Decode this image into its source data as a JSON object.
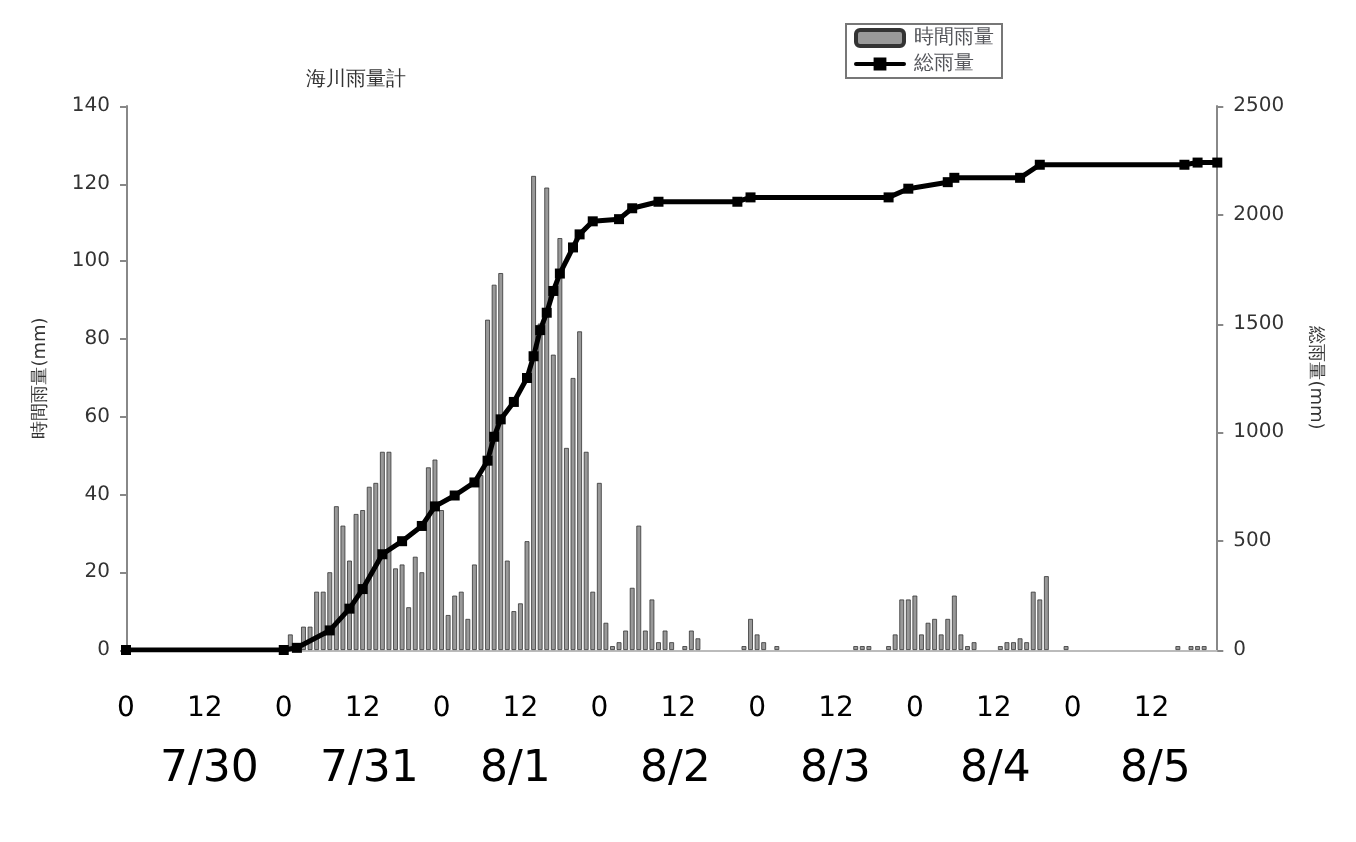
{
  "chart_data": {
    "type": "bar",
    "title": "海川雨量計",
    "ylabel": "時間雨量(mm)",
    "y2label": "総雨量(mm)",
    "xlim": [
      "--07-30T00:00",
      "--08-05T22:00"
    ],
    "xticks": [
      {
        "value": "--07-30T00:00",
        "label": "0"
      },
      {
        "value": "--07-30T12:00",
        "label": "12"
      },
      {
        "value": "--07-31T00:00",
        "label": "0"
      },
      {
        "value": "--07-31T12:00",
        "label": "12"
      },
      {
        "value": "--08-01T00:00",
        "label": "0"
      },
      {
        "value": "--08-01T12:00",
        "label": "12"
      },
      {
        "value": "--08-02T00:00",
        "label": "0"
      },
      {
        "value": "--08-02T12:00",
        "label": "12"
      },
      {
        "value": "--08-03T00:00",
        "label": "0"
      },
      {
        "value": "--08-03T12:00",
        "label": "12"
      },
      {
        "value": "--08-04T00:00",
        "label": "0"
      },
      {
        "value": "--08-04T12:00",
        "label": "12"
      },
      {
        "value": "--08-05T00:00",
        "label": "0"
      },
      {
        "value": "--08-05T12:00",
        "label": "12"
      }
    ],
    "ylim": [
      0,
      140
    ],
    "yticks": [
      0,
      20,
      40,
      60,
      80,
      100,
      120,
      140
    ],
    "y2lim": [
      0,
      2500
    ],
    "y2ticks": [
      0,
      500,
      1000,
      1500,
      2000,
      2500
    ],
    "series": [
      {
        "name": "時間雨量",
        "color": "#999999",
        "x": [
          "--07-31T01:00",
          "--07-31T03:00",
          "--07-31T04:00",
          "--07-31T05:00",
          "--07-31T06:00",
          "--07-31T07:00",
          "--07-31T08:00",
          "--07-31T09:00",
          "--07-31T10:00",
          "--07-31T11:00",
          "--07-31T12:00",
          "--07-31T13:00",
          "--07-31T14:00",
          "--07-31T15:00",
          "--07-31T16:00",
          "--07-31T17:00",
          "--07-31T18:00",
          "--07-31T19:00",
          "--07-31T20:00",
          "--07-31T21:00",
          "--07-31T22:00",
          "--07-31T23:00",
          "--08-01T00:00",
          "--08-01T01:00",
          "--08-01T02:00",
          "--08-01T03:00",
          "--08-01T04:00",
          "--08-01T05:00",
          "--08-01T06:00",
          "--08-01T07:00",
          "--08-01T08:00",
          "--08-01T09:00",
          "--08-01T10:00",
          "--08-01T11:00",
          "--08-01T12:00",
          "--08-01T13:00",
          "--08-01T14:00",
          "--08-01T15:00",
          "--08-01T16:00",
          "--08-01T17:00",
          "--08-01T18:00",
          "--08-01T19:00",
          "--08-01T20:00",
          "--08-01T21:00",
          "--08-01T22:00",
          "--08-01T23:00",
          "--08-02T00:00",
          "--08-02T01:00",
          "--08-02T02:00",
          "--08-02T03:00",
          "--08-02T04:00",
          "--08-02T05:00",
          "--08-02T06:00",
          "--08-02T07:00",
          "--08-02T08:00",
          "--08-02T09:00",
          "--08-02T10:00",
          "--08-02T11:00",
          "--08-02T13:00",
          "--08-02T14:00",
          "--08-02T15:00",
          "--08-02T22:00",
          "--08-02T23:00",
          "--08-03T00:00",
          "--08-03T01:00",
          "--08-03T03:00",
          "--08-03T15:00",
          "--08-03T16:00",
          "--08-03T17:00",
          "--08-03T20:00",
          "--08-03T21:00",
          "--08-03T22:00",
          "--08-03T23:00",
          "--08-04T00:00",
          "--08-04T01:00",
          "--08-04T02:00",
          "--08-04T03:00",
          "--08-04T04:00",
          "--08-04T05:00",
          "--08-04T06:00",
          "--08-04T07:00",
          "--08-04T08:00",
          "--08-04T09:00",
          "--08-04T13:00",
          "--08-04T14:00",
          "--08-04T15:00",
          "--08-04T16:00",
          "--08-04T17:00",
          "--08-04T18:00",
          "--08-04T19:00",
          "--08-04T20:00",
          "--08-04T23:00",
          "--08-05T16:00",
          "--08-05T18:00",
          "--08-05T19:00",
          "--08-05T20:00"
        ],
        "values": [
          4,
          6,
          6,
          15,
          15,
          20,
          37,
          32,
          23,
          35,
          36,
          42,
          43,
          51,
          51,
          21,
          22,
          11,
          24,
          20,
          47,
          49,
          36,
          9,
          14,
          15,
          8,
          22,
          45,
          85,
          94,
          97,
          23,
          10,
          12,
          28,
          122,
          84,
          119,
          76,
          106,
          52,
          70,
          82,
          51,
          15,
          43,
          7,
          1,
          2,
          5,
          16,
          32,
          5,
          13,
          2,
          5,
          2,
          1,
          5,
          3,
          1,
          8,
          4,
          2,
          1,
          1,
          1,
          1,
          1,
          4,
          13,
          13,
          14,
          4,
          7,
          8,
          4,
          8,
          14,
          4,
          1,
          2,
          1,
          2,
          2,
          3,
          2,
          15,
          13,
          19,
          1,
          1,
          1,
          1,
          1
        ]
      },
      {
        "name": "総雨量",
        "type": "line",
        "axis": "y2",
        "color": "#000000",
        "x": [
          "--07-30T00:00",
          "--07-31T00:00",
          "--07-31T02:00",
          "--07-31T07:00",
          "--07-31T10:00",
          "--07-31T12:00",
          "--07-31T15:00",
          "--07-31T18:00",
          "--07-31T21:00",
          "--07-31T23:00",
          "--08-01T02:00",
          "--08-01T05:00",
          "--08-01T07:00",
          "--08-01T08:00",
          "--08-01T09:00",
          "--08-01T11:00",
          "--08-01T13:00",
          "--08-01T14:00",
          "--08-01T15:00",
          "--08-01T16:00",
          "--08-01T17:00",
          "--08-01T18:00",
          "--08-01T20:00",
          "--08-01T21:00",
          "--08-01T23:00",
          "--08-02T03:00",
          "--08-02T05:00",
          "--08-02T09:00",
          "--08-02T21:00",
          "--08-02T23:00",
          "--08-03T20:00",
          "--08-03T23:00",
          "--08-04T05:00",
          "--08-04T06:00",
          "--08-04T16:00",
          "--08-04T19:00",
          "--08-05T17:00",
          "--08-05T19:00",
          "--08-05T22:00"
        ],
        "values": [
          0,
          0,
          10,
          90,
          190,
          280,
          440,
          500,
          570,
          660,
          710,
          770,
          870,
          980,
          1060,
          1140,
          1250,
          1350,
          1470,
          1550,
          1650,
          1730,
          1850,
          1910,
          1970,
          1980,
          2030,
          2060,
          2060,
          2080,
          2080,
          2120,
          2150,
          2170,
          2170,
          2230,
          2230,
          2240,
          2240
        ]
      }
    ],
    "marker": "square",
    "line_style": "solid",
    "legend": "top",
    "grid": false,
    "annotations": [
      "7/30",
      "7/31",
      "8/1",
      "8/2",
      "8/3",
      "8/4",
      "8/5"
    ]
  }
}
